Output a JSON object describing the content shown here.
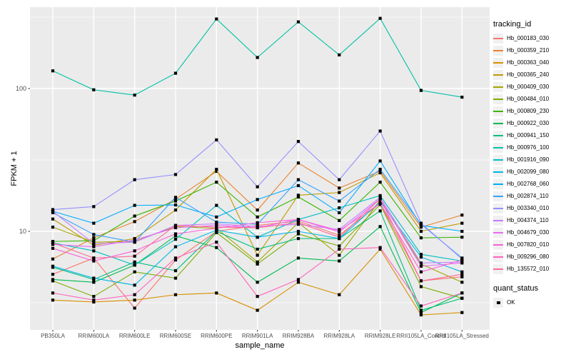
{
  "chart_data": {
    "type": "line",
    "title": "",
    "xlabel": "sample_name",
    "ylabel": "FPKM + 1",
    "y_scale": "log10",
    "y_ticks": [
      100,
      10
    ],
    "y_minor_ticks": [
      316.2,
      31.62,
      3.162
    ],
    "ylim": [
      2.0,
      372
    ],
    "grid": true,
    "legend_position": "right",
    "legend_title": "tracking_id",
    "point_shape": "black-square",
    "panel_background": "#EBEBEB",
    "gridline_color": "#FFFFFF",
    "categories": [
      "PB350LA",
      "RRIM600LA",
      "RRIM600LE",
      "RRIM600SE",
      "RRIM600PE",
      "RRIM901LA",
      "RRIM928BA",
      "RRIM928LA",
      "RRIM928LE",
      "RRII105LA_Control",
      "RRII105LA_Stressed"
    ],
    "series": [
      {
        "name": "Hb_000183_030",
        "color": "#F8766D",
        "values": [
          5.0,
          6.5,
          2.9,
          6.3,
          10.0,
          11.0,
          11.8,
          9.4,
          15.7,
          4.5,
          4.8
        ]
      },
      {
        "name": "Hb_000359_210",
        "color": "#EA8331",
        "values": [
          6.4,
          9.0,
          11.7,
          16.8,
          26.3,
          14.1,
          30.1,
          20.1,
          26.4,
          10.7,
          13.0
        ]
      },
      {
        "name": "Hb_000363_040",
        "color": "#D89000",
        "values": [
          3.3,
          3.2,
          3.3,
          3.6,
          3.7,
          2.8,
          4.4,
          3.6,
          7.5,
          2.6,
          2.7
        ]
      },
      {
        "name": "Hb_000365_240",
        "color": "#C09B00",
        "values": [
          12.2,
          8.0,
          8.9,
          14.1,
          27.2,
          6.8,
          17.9,
          18.7,
          25.7,
          10.0,
          11.4
        ]
      },
      {
        "name": "Hb_000409_030",
        "color": "#A3A500",
        "values": [
          10.7,
          8.4,
          8.5,
          10.8,
          10.5,
          6.1,
          11.5,
          6.8,
          16.6,
          5.9,
          4.4
        ]
      },
      {
        "name": "Hb_000484_010",
        "color": "#7CAE00",
        "values": [
          4.5,
          3.5,
          5.2,
          4.7,
          9.8,
          5.9,
          9.6,
          7.9,
          15.4,
          4.1,
          3.4
        ]
      },
      {
        "name": "Hb_000809_230",
        "color": "#39B600",
        "values": [
          8.5,
          8.6,
          12.8,
          16.3,
          22.1,
          12.6,
          17.4,
          11.9,
          22.1,
          9.0,
          9.1
        ]
      },
      {
        "name": "Hb_000922_030",
        "color": "#00BB4E",
        "values": [
          4.6,
          4.4,
          5.8,
          9.3,
          7.7,
          4.4,
          6.5,
          6.2,
          10.8,
          2.7,
          3.7
        ]
      },
      {
        "name": "Hb_000941_150",
        "color": "#00BF7D",
        "values": [
          5.6,
          4.6,
          6.1,
          5.3,
          10.0,
          7.5,
          8.9,
          8.9,
          13.9,
          2.8,
          3.4
        ]
      },
      {
        "name": "Hb_000976_100",
        "color": "#00C1A3",
        "values": [
          133,
          98,
          90,
          128,
          307,
          165,
          293,
          172,
          310,
          97,
          87
        ]
      },
      {
        "name": "Hb_001916_090",
        "color": "#00BFC4",
        "values": [
          8.3,
          7.3,
          5.8,
          8.8,
          15.2,
          9.1,
          12.1,
          14.6,
          17.8,
          6.9,
          6.2
        ]
      },
      {
        "name": "Hb_002099_080",
        "color": "#00B8E7",
        "values": [
          5.7,
          4.7,
          4.2,
          7.8,
          10.2,
          9.1,
          10.0,
          8.9,
          16.1,
          6.6,
          5.2
        ]
      },
      {
        "name": "Hb_002768_060",
        "color": "#00ACFC",
        "values": [
          13.8,
          11.4,
          15.2,
          15.3,
          12.6,
          16.7,
          20.9,
          13.5,
          31.1,
          11.0,
          10.0
        ]
      },
      {
        "name": "Hb_002874_110",
        "color": "#35A2FF",
        "values": [
          13.5,
          9.5,
          8.4,
          17.3,
          11.6,
          11.2,
          23.0,
          16.3,
          27.2,
          11.2,
          6.5
        ]
      },
      {
        "name": "Hb_003340_010",
        "color": "#9590FF",
        "values": [
          14.2,
          14.9,
          23.0,
          25.0,
          43.7,
          20.5,
          42.6,
          23.0,
          50.4,
          11.4,
          6.4
        ]
      },
      {
        "name": "Hb_004374_110",
        "color": "#C77CFF",
        "values": [
          13.8,
          8.2,
          8.4,
          11.0,
          11.3,
          10.8,
          11.2,
          10.3,
          17.3,
          6.0,
          6.1
        ]
      },
      {
        "name": "Hb_004679_030",
        "color": "#E76BF3",
        "values": [
          8.1,
          7.8,
          8.7,
          10.6,
          11.0,
          10.6,
          12.1,
          9.9,
          16.9,
          5.7,
          6.0
        ]
      },
      {
        "name": "Hb_007820_010",
        "color": "#FA62DB",
        "values": [
          7.6,
          6.2,
          7.3,
          9.6,
          10.5,
          11.5,
          12.1,
          10.1,
          15.7,
          5.2,
          6.3
        ]
      },
      {
        "name": "Hb_009296_080",
        "color": "#FF62BC",
        "values": [
          3.7,
          3.3,
          3.6,
          6.5,
          8.4,
          3.5,
          4.6,
          7.5,
          7.7,
          3.0,
          3.7
        ]
      },
      {
        "name": "Hb_135572_010",
        "color": "#FF6A98",
        "values": [
          8.3,
          6.5,
          6.7,
          11.0,
          10.7,
          10.6,
          11.5,
          9.1,
          16.9,
          4.5,
          5.0
        ]
      }
    ],
    "quant_legend": {
      "title": "quant_status",
      "items": [
        {
          "label": "OK",
          "marker": "black-square"
        }
      ]
    }
  }
}
